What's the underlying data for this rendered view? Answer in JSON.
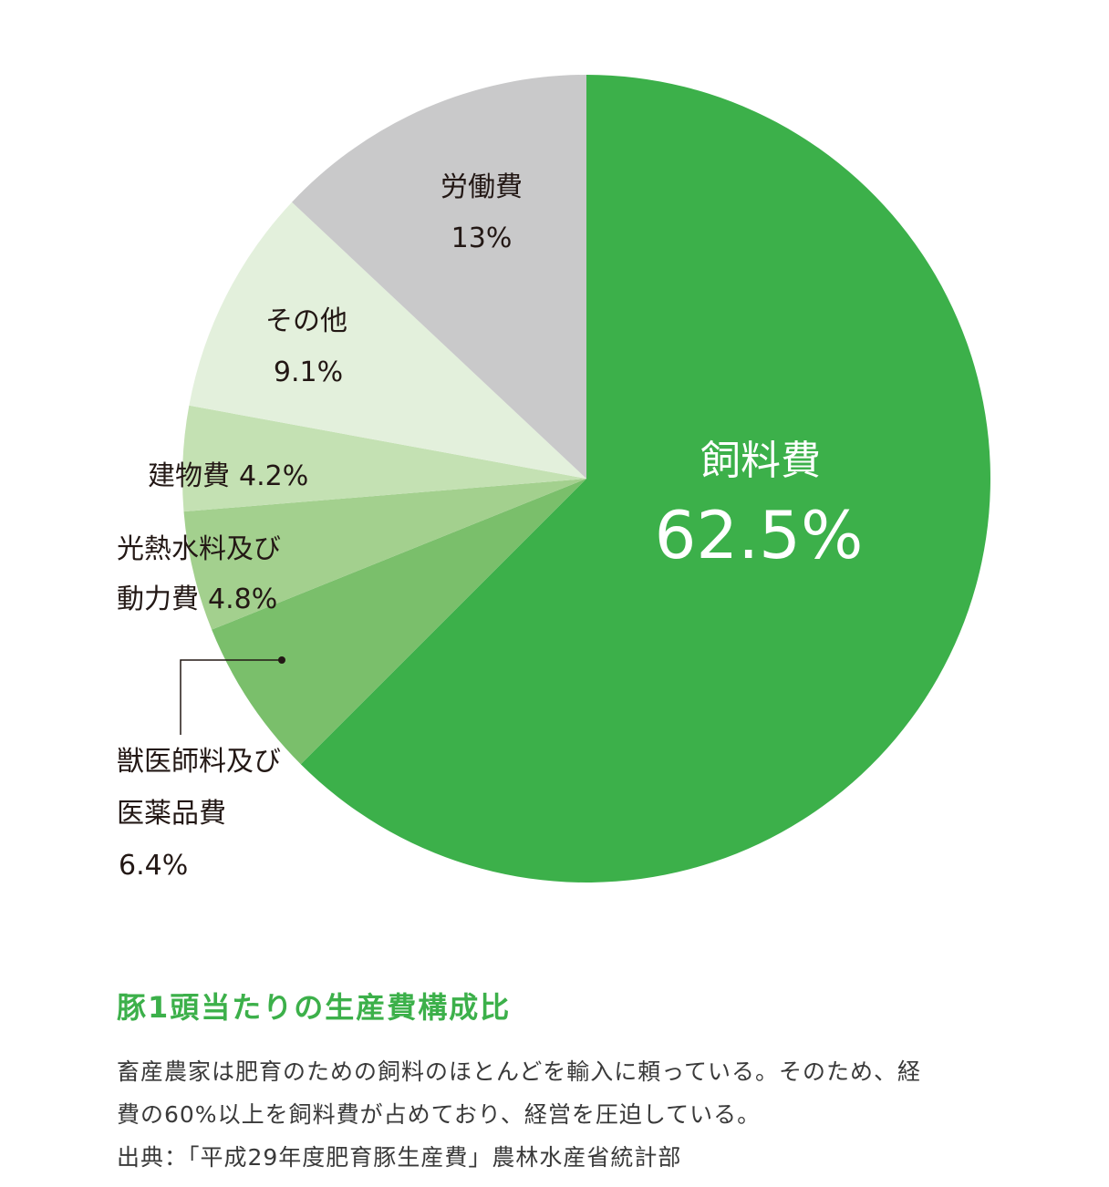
{
  "chart_data": {
    "type": "pie",
    "slices": [
      {
        "label": "飼料費",
        "value": 62.5,
        "value_text": "62.5%",
        "color": "#3cb04a"
      },
      {
        "label": "獣医師料及び医薬品費",
        "label_lines": [
          "獣医師料及び",
          "医薬品費"
        ],
        "value": 6.4,
        "value_text": "6.4%",
        "color": "#7abf6b"
      },
      {
        "label": "光熱水料及び動力費",
        "label_lines": [
          "光熱水料及び",
          "動力費"
        ],
        "value": 4.8,
        "value_text": "4.8%",
        "color": "#a3d08e"
      },
      {
        "label": "建物費",
        "value": 4.2,
        "value_text": "4.2%",
        "color": "#c4e1b3"
      },
      {
        "label": "その他",
        "value": 9.1,
        "value_text": "9.1%",
        "color": "#e3f0dc"
      },
      {
        "label": "労働費",
        "value": 13,
        "value_text": "13%",
        "color": "#c9c9ca"
      }
    ]
  },
  "caption": {
    "title": "豚1頭当たりの生産費構成比",
    "lines": [
      "畜産農家は肥育のための飼料のほとんどを輸入に頼っている。そのため、経",
      "費の60%以上を飼料費が占めており、経営を圧迫している。",
      "出典：「平成29年度肥育豚生産費」農林水産省統計部"
    ]
  }
}
